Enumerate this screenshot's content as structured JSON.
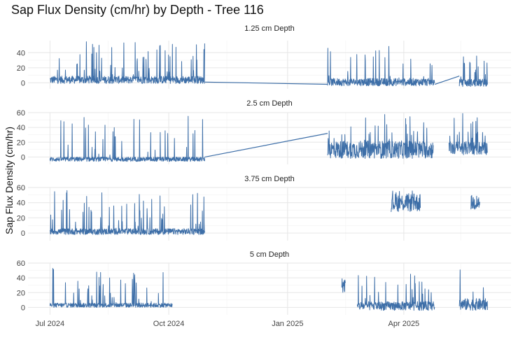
{
  "title": "Sap Flux Density (cm/hr) by Depth - Tree 116",
  "chart_data": {
    "type": "line",
    "title": "Sap Flux Density (cm/hr) by Depth - Tree 116",
    "ylabel": "Sap Flux Density (cm/hr)",
    "xlabel": "",
    "x_ticks": [
      "Jul 2024",
      "Oct 2024",
      "Jan 2025",
      "Apr 2025"
    ],
    "x_range": [
      "2024-06-14",
      "2025-06-23"
    ],
    "grid": true,
    "legend": "none",
    "color": "#3E6FA8",
    "series": [
      {
        "name": "1.25 cm Depth",
        "ylim": [
          -8,
          56
        ],
        "y_ticks": [
          0,
          20,
          40
        ],
        "segments": [
          {
            "start": "2024-07-01",
            "end": "2024-10-29",
            "baseline": 4,
            "spike_max": 55,
            "noise": 5
          },
          {
            "start": "2025-02-01",
            "end": "2025-04-25",
            "baseline": 1,
            "spike_max": 49,
            "noise": 5
          },
          {
            "start": "2025-05-14",
            "end": "2025-06-05",
            "baseline": 0,
            "spike_max": 36,
            "noise": 5
          }
        ],
        "gap_lines": [
          {
            "from": [
              "2024-10-29",
              1
            ],
            "to": [
              "2025-02-01",
              -2
            ]
          },
          {
            "from": [
              "2025-04-25",
              -2
            ],
            "to": [
              "2025-05-14",
              9
            ]
          }
        ]
      },
      {
        "name": "2.5 cm Depth",
        "ylim": [
          -10,
          60
        ],
        "y_ticks": [
          0,
          20,
          40,
          60
        ],
        "segments": [
          {
            "start": "2024-07-01",
            "end": "2024-10-29",
            "baseline": -3,
            "spike_max": 56,
            "noise": 3
          },
          {
            "start": "2025-02-01",
            "end": "2025-04-24",
            "baseline": 10,
            "spike_max": 59,
            "noise": 12
          },
          {
            "start": "2025-05-06",
            "end": "2025-06-05",
            "baseline": 12,
            "spike_max": 59,
            "noise": 9
          }
        ],
        "gap_lines": [
          {
            "from": [
              "2024-10-29",
              0
            ],
            "to": [
              "2025-02-01",
              32
            ]
          }
        ]
      },
      {
        "name": "3.75 cm Depth",
        "ylim": [
          -10,
          60
        ],
        "y_ticks": [
          0,
          20,
          40,
          60
        ],
        "segments": [
          {
            "start": "2024-07-01",
            "end": "2024-10-29",
            "baseline": 2,
            "spike_max": 56,
            "noise": 4
          },
          {
            "start": "2025-03-22",
            "end": "2025-04-14",
            "baseline": 40,
            "spike_max": 56,
            "noise": 12
          },
          {
            "start": "2025-05-23",
            "end": "2025-05-30",
            "baseline": 40,
            "spike_max": 55,
            "noise": 10
          }
        ],
        "gap_lines": []
      },
      {
        "name": "5 cm Depth",
        "ylim": [
          -10,
          60
        ],
        "y_ticks": [
          0,
          20,
          40,
          60
        ],
        "segments": [
          {
            "start": "2024-07-01",
            "end": "2024-10-04",
            "baseline": 3,
            "spike_max": 57,
            "noise": 3
          },
          {
            "start": "2025-02-12",
            "end": "2025-02-15",
            "baseline": 30,
            "spike_max": 44,
            "noise": 10
          },
          {
            "start": "2025-02-24",
            "end": "2025-04-25",
            "baseline": 2,
            "spike_max": 45,
            "noise": 6
          },
          {
            "start": "2025-05-14",
            "end": "2025-06-05",
            "baseline": 4,
            "spike_max": 60,
            "noise": 8
          }
        ],
        "gap_lines": []
      }
    ]
  }
}
